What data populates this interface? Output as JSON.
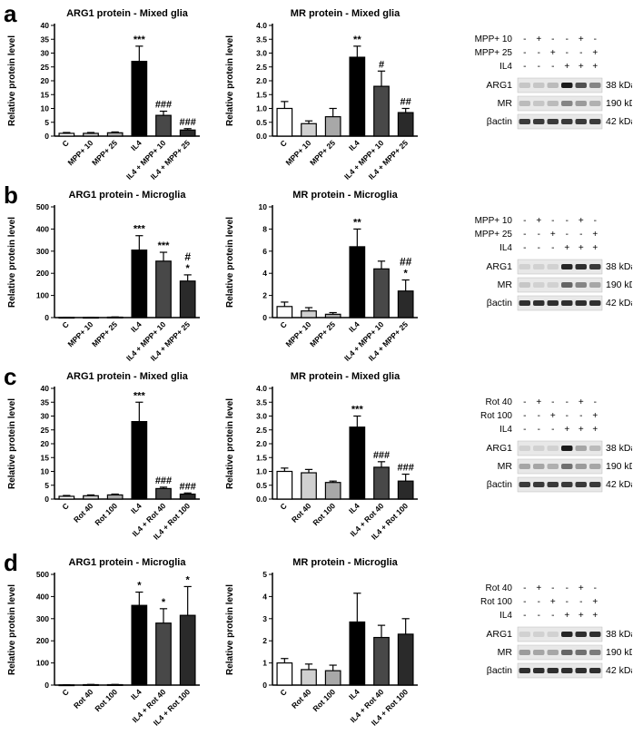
{
  "panels": [
    {
      "letter": "a",
      "charts": [
        {
          "type": "bar",
          "title": "ARG1 protein - Mixed glia",
          "ylabel": "Relative protein level",
          "ylim": [
            0,
            40
          ],
          "yticks": [
            0,
            5,
            10,
            15,
            20,
            25,
            30,
            35,
            40
          ],
          "ytick_labels": [
            "0",
            "5",
            "10",
            "15",
            "20",
            "25",
            "30",
            "35",
            "40"
          ],
          "categories": [
            "C",
            "MPP+ 10",
            "MPP+ 25",
            "IL4",
            "IL4 + MPP+ 10",
            "IL4 + MPP+ 25"
          ],
          "values": [
            1,
            1,
            1.2,
            27,
            7.5,
            2.2
          ],
          "errors": [
            0.3,
            0.3,
            0.3,
            5.5,
            1.5,
            0.5
          ],
          "annotations": [
            "",
            "",
            "",
            "***",
            "###",
            "###"
          ],
          "annotations2": [
            "",
            "",
            "",
            "",
            "",
            ""
          ]
        },
        {
          "type": "bar",
          "title": "MR protein - Mixed glia",
          "ylabel": "Relative protein level",
          "ylim": [
            0,
            4
          ],
          "yticks": [
            0,
            0.5,
            1,
            1.5,
            2,
            2.5,
            3,
            3.5,
            4
          ],
          "ytick_labels": [
            "0.0",
            "0.5",
            "1.0",
            "1.5",
            "2.0",
            "2.5",
            "3.0",
            "3.5",
            "4.0"
          ],
          "categories": [
            "C",
            "MPP+ 10",
            "MPP+ 25",
            "IL4",
            "IL4 + MPP+ 10",
            "IL4 + MPP+ 25"
          ],
          "values": [
            1,
            0.45,
            0.7,
            2.85,
            1.8,
            0.85
          ],
          "errors": [
            0.25,
            0.1,
            0.3,
            0.4,
            0.55,
            0.15
          ],
          "annotations": [
            "",
            "",
            "",
            "**",
            "#",
            "##"
          ],
          "annotations2": [
            "",
            "",
            "",
            "",
            "",
            ""
          ]
        }
      ],
      "blot": {
        "rows": [
          "MPP+ 10",
          "MPP+ 25",
          "IL4"
        ],
        "signs": [
          [
            "-",
            "+",
            "-",
            "-",
            "+",
            "-"
          ],
          [
            "-",
            "-",
            "+",
            "-",
            "-",
            "+"
          ],
          [
            "-",
            "-",
            "-",
            "+",
            "+",
            "+"
          ]
        ],
        "bands": [
          {
            "label": "ARG1",
            "kda": "38 kDa",
            "intensity": [
              0.15,
              0.15,
              0.2,
              0.95,
              0.7,
              0.45
            ]
          },
          {
            "label": "MR",
            "kda": "190 kDa",
            "intensity": [
              0.2,
              0.15,
              0.2,
              0.45,
              0.35,
              0.25
            ]
          },
          {
            "label": "βactin",
            "kda": "42 kDa",
            "intensity": [
              0.8,
              0.8,
              0.8,
              0.8,
              0.8,
              0.8
            ]
          }
        ]
      }
    },
    {
      "letter": "b",
      "charts": [
        {
          "type": "bar",
          "title": "ARG1 protein - Microglia",
          "ylabel": "Relative protein level",
          "ylim": [
            0,
            500
          ],
          "yticks": [
            0,
            100,
            200,
            300,
            400,
            500
          ],
          "ytick_labels": [
            "0",
            "100",
            "200",
            "300",
            "400",
            "500"
          ],
          "categories": [
            "C",
            "MPP+ 10",
            "MPP+ 25",
            "IL4",
            "IL4 + MPP+ 10",
            "IL4 + MPP+ 25"
          ],
          "values": [
            1,
            1,
            2,
            305,
            255,
            165
          ],
          "errors": [
            0.5,
            0.5,
            1,
            65,
            40,
            28
          ],
          "annotations": [
            "",
            "",
            "",
            "***",
            "***",
            "*"
          ],
          "annotations2": [
            "",
            "",
            "",
            "",
            "",
            "#"
          ]
        },
        {
          "type": "bar",
          "title": "MR protein - Microglia",
          "ylabel": "Relative protein level",
          "ylim": [
            0,
            10
          ],
          "yticks": [
            0,
            2,
            4,
            6,
            8,
            10
          ],
          "ytick_labels": [
            "0",
            "2",
            "4",
            "6",
            "8",
            "10"
          ],
          "categories": [
            "C",
            "MPP+ 10",
            "MPP+ 25",
            "IL4",
            "IL4 + MPP+ 10",
            "IL4 + MPP+ 25"
          ],
          "values": [
            1,
            0.6,
            0.3,
            6.4,
            4.4,
            2.4
          ],
          "errors": [
            0.4,
            0.3,
            0.15,
            1.6,
            0.7,
            1.0
          ],
          "annotations": [
            "",
            "",
            "",
            "**",
            "",
            "*"
          ],
          "annotations2": [
            "",
            "",
            "",
            "",
            "",
            "##"
          ]
        }
      ],
      "blot": {
        "rows": [
          "MPP+ 10",
          "MPP+ 25",
          "IL4"
        ],
        "signs": [
          [
            "-",
            "+",
            "-",
            "-",
            "+",
            "-"
          ],
          [
            "-",
            "-",
            "+",
            "-",
            "-",
            "+"
          ],
          [
            "-",
            "-",
            "-",
            "+",
            "+",
            "+"
          ]
        ],
        "bands": [
          {
            "label": "ARG1",
            "kda": "38 kDa",
            "intensity": [
              0.1,
              0.1,
              0.1,
              0.9,
              0.85,
              0.8
            ]
          },
          {
            "label": "MR",
            "kda": "190 kDa",
            "intensity": [
              0.15,
              0.1,
              0.1,
              0.6,
              0.45,
              0.3
            ]
          },
          {
            "label": "βactin",
            "kda": "42 kDa",
            "intensity": [
              0.85,
              0.85,
              0.85,
              0.85,
              0.85,
              0.85
            ]
          }
        ]
      }
    },
    {
      "letter": "c",
      "charts": [
        {
          "type": "bar",
          "title": "ARG1 protein - Mixed glia",
          "ylabel": "Relative protein level",
          "ylim": [
            0,
            40
          ],
          "yticks": [
            0,
            5,
            10,
            15,
            20,
            25,
            30,
            35,
            40
          ],
          "ytick_labels": [
            "0",
            "5",
            "10",
            "15",
            "20",
            "25",
            "30",
            "35",
            "40"
          ],
          "categories": [
            "C",
            "Rot 40",
            "Rot 100",
            "IL4",
            "IL4 + Rot 40",
            "IL4 + Rot 100"
          ],
          "values": [
            1,
            1.2,
            1.5,
            28,
            3.8,
            1.8
          ],
          "errors": [
            0.3,
            0.3,
            0.3,
            7,
            0.5,
            0.4
          ],
          "annotations": [
            "",
            "",
            "",
            "***",
            "###",
            "###"
          ],
          "annotations2": [
            "",
            "",
            "",
            "",
            "",
            ""
          ]
        },
        {
          "type": "bar",
          "title": "MR protein - Mixed glia",
          "ylabel": "Relative protein level",
          "ylim": [
            0,
            4
          ],
          "yticks": [
            0,
            0.5,
            1,
            1.5,
            2,
            2.5,
            3,
            3.5,
            4
          ],
          "ytick_labels": [
            "0.0",
            "0.5",
            "1.0",
            "1.5",
            "2.0",
            "2.5",
            "3.0",
            "3.5",
            "4.0"
          ],
          "categories": [
            "C",
            "Rot 40",
            "Rot 100",
            "IL4",
            "IL4 + Rot 40",
            "IL4 + Rot 100"
          ],
          "values": [
            1,
            0.95,
            0.6,
            2.6,
            1.15,
            0.65
          ],
          "errors": [
            0.12,
            0.12,
            0.05,
            0.4,
            0.2,
            0.25
          ],
          "annotations": [
            "",
            "",
            "",
            "***",
            "###",
            "###"
          ],
          "annotations2": [
            "",
            "",
            "",
            "",
            "",
            ""
          ]
        }
      ],
      "blot": {
        "rows": [
          "Rot 40",
          "Rot 100",
          "IL4"
        ],
        "signs": [
          [
            "-",
            "+",
            "-",
            "-",
            "+",
            "-"
          ],
          [
            "-",
            "-",
            "+",
            "-",
            "-",
            "+"
          ],
          [
            "-",
            "-",
            "-",
            "+",
            "+",
            "+"
          ]
        ],
        "bands": [
          {
            "label": "ARG1",
            "kda": "38 kDa",
            "intensity": [
              0.1,
              0.1,
              0.1,
              0.95,
              0.3,
              0.2
            ]
          },
          {
            "label": "MR",
            "kda": "190 kDa",
            "intensity": [
              0.3,
              0.3,
              0.25,
              0.55,
              0.35,
              0.3
            ]
          },
          {
            "label": "βactin",
            "kda": "42 kDa",
            "intensity": [
              0.8,
              0.8,
              0.8,
              0.8,
              0.8,
              0.8
            ]
          }
        ]
      }
    },
    {
      "letter": "d",
      "charts": [
        {
          "type": "bar",
          "title": "ARG1 protein - Microglia",
          "ylabel": "Relative protein level",
          "ylim": [
            0,
            500
          ],
          "yticks": [
            0,
            100,
            200,
            300,
            400,
            500
          ],
          "ytick_labels": [
            "0",
            "100",
            "200",
            "300",
            "400",
            "500"
          ],
          "categories": [
            "C",
            "Rot 40",
            "Rot 100",
            "IL4",
            "IL4 + Rot 40",
            "IL4 + Rot 100"
          ],
          "values": [
            1,
            2,
            2,
            360,
            280,
            315
          ],
          "errors": [
            0.5,
            1,
            1,
            60,
            65,
            130
          ],
          "annotations": [
            "",
            "",
            "",
            "*",
            "*",
            "*"
          ],
          "annotations2": [
            "",
            "",
            "",
            "",
            "",
            ""
          ]
        },
        {
          "type": "bar",
          "title": "MR protein - Microglia",
          "ylabel": "Relative protein level",
          "ylim": [
            0,
            5
          ],
          "yticks": [
            0,
            1,
            2,
            3,
            4,
            5
          ],
          "ytick_labels": [
            "0",
            "1",
            "2",
            "3",
            "4",
            "5"
          ],
          "categories": [
            "C",
            "Rot 40",
            "Rot 100",
            "IL4",
            "IL4 + Rot 40",
            "IL4 + Rot 100"
          ],
          "values": [
            1,
            0.7,
            0.65,
            2.85,
            2.15,
            2.3
          ],
          "errors": [
            0.2,
            0.25,
            0.25,
            1.3,
            0.55,
            0.7
          ],
          "annotations": [
            "",
            "",
            "",
            "",
            "",
            ""
          ],
          "annotations2": [
            "",
            "",
            "",
            "",
            "",
            ""
          ]
        }
      ],
      "blot": {
        "rows": [
          "Rot 40",
          "Rot 100",
          "IL4"
        ],
        "signs": [
          [
            "-",
            "+",
            "-",
            "-",
            "+",
            "-"
          ],
          [
            "-",
            "-",
            "+",
            "-",
            "-",
            "+"
          ],
          [
            "-",
            "-",
            "-",
            "+",
            "+",
            "+"
          ]
        ],
        "bands": [
          {
            "label": "ARG1",
            "kda": "38 kDa",
            "intensity": [
              0.1,
              0.1,
              0.1,
              0.9,
              0.85,
              0.85
            ]
          },
          {
            "label": "MR",
            "kda": "190 kDa",
            "intensity": [
              0.35,
              0.3,
              0.3,
              0.6,
              0.55,
              0.5
            ]
          },
          {
            "label": "βactin",
            "kda": "42 kDa",
            "intensity": [
              0.85,
              0.85,
              0.85,
              0.85,
              0.85,
              0.85
            ]
          }
        ]
      }
    }
  ],
  "bar_colors": [
    "#ffffff",
    "#d0d0d0",
    "#a8a8a8",
    "#000000",
    "#484848",
    "#2a2a2a"
  ]
}
